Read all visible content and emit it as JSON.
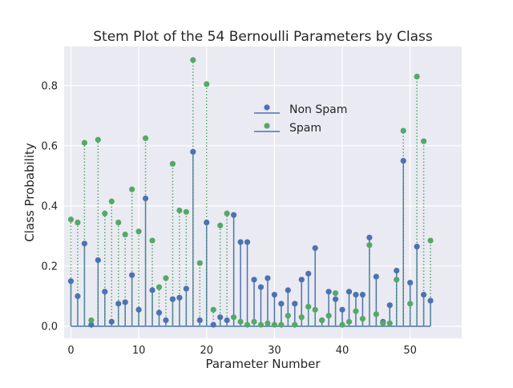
{
  "chart_data": {
    "type": "stem",
    "title": "Stem Plot of the 54 Bernoulli Parameters by Class",
    "xlabel": "Parameter Number",
    "ylabel": "Class Probability",
    "xlim": [
      -1,
      57.6
    ],
    "ylim": [
      -0.04,
      0.93
    ],
    "x_ticks": [
      0,
      10,
      20,
      30,
      40,
      50
    ],
    "y_ticks": [
      0.0,
      0.2,
      0.4,
      0.6,
      0.8
    ],
    "x_tick_labels": [
      "0",
      "10",
      "20",
      "30",
      "40",
      "50"
    ],
    "y_tick_labels": [
      "0.0",
      "0.2",
      "0.4",
      "0.6",
      "0.8"
    ],
    "grid": true,
    "legend_position": "upper-center-right",
    "series": [
      {
        "name": "Non Spam",
        "color": "#4c72b0",
        "stem_style": "solid",
        "values": [
          0.15,
          0.1,
          0.275,
          0.005,
          0.22,
          0.115,
          0.015,
          0.075,
          0.08,
          0.17,
          0.055,
          0.425,
          0.12,
          0.045,
          0.02,
          0.09,
          0.095,
          0.125,
          0.58,
          0.02,
          0.345,
          0.005,
          0.03,
          0.02,
          0.37,
          0.28,
          0.28,
          0.155,
          0.13,
          0.16,
          0.105,
          0.075,
          0.12,
          0.075,
          0.155,
          0.175,
          0.26,
          0.02,
          0.115,
          0.09,
          0.055,
          0.115,
          0.105,
          0.105,
          0.295,
          0.165,
          0.015,
          0.07,
          0.185,
          0.55,
          0.145,
          0.265,
          0.105,
          0.085
        ]
      },
      {
        "name": "Spam",
        "color": "#55a868",
        "stem_style": "dotted",
        "values": [
          0.355,
          0.345,
          0.61,
          0.02,
          0.62,
          0.375,
          0.415,
          0.345,
          0.305,
          0.455,
          0.315,
          0.625,
          0.285,
          0.13,
          0.16,
          0.54,
          0.385,
          0.38,
          0.885,
          0.21,
          0.805,
          0.055,
          0.335,
          0.375,
          0.03,
          0.015,
          0.005,
          0.015,
          0.005,
          0.01,
          0.005,
          0.005,
          0.035,
          0.005,
          0.03,
          0.065,
          0.055,
          0.02,
          0.035,
          0.11,
          0.005,
          0.015,
          0.05,
          0.025,
          0.27,
          0.04,
          0.01,
          0.01,
          0.155,
          0.65,
          0.075,
          0.83,
          0.615,
          0.285
        ]
      }
    ]
  }
}
